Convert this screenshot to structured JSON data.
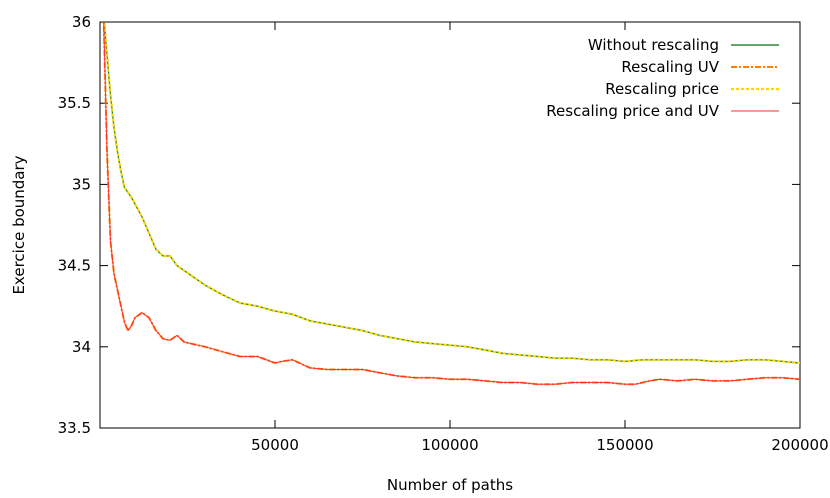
{
  "chart_data": {
    "type": "line",
    "xlabel": "Number of paths",
    "ylabel": "Exercice boundary",
    "xlim": [
      0,
      200000
    ],
    "ylim": [
      33.5,
      36
    ],
    "x_ticks": [
      50000,
      100000,
      150000,
      200000
    ],
    "y_ticks": [
      33.5,
      34,
      34.5,
      35,
      35.5,
      36
    ],
    "legend_position": "top-right",
    "grid": false,
    "series": [
      {
        "name": "Without rescaling",
        "color": "#2e8b3a",
        "style": "solid",
        "x": [
          1000,
          2000,
          3000,
          4000,
          5000,
          6000,
          7000,
          8000,
          9000,
          10000,
          12000,
          14000,
          16000,
          18000,
          20000,
          22000,
          24000,
          26000,
          28000,
          30000,
          35000,
          40000,
          45000,
          50000,
          55000,
          60000,
          65000,
          70000,
          75000,
          80000,
          85000,
          90000,
          95000,
          100000,
          105000,
          110000,
          115000,
          120000,
          125000,
          130000,
          135000,
          140000,
          145000,
          150000,
          155000,
          160000,
          165000,
          170000,
          175000,
          180000,
          185000,
          190000,
          195000,
          200000
        ],
        "y": [
          36.05,
          35.8,
          35.55,
          35.35,
          35.2,
          35.08,
          34.98,
          34.95,
          34.92,
          34.88,
          34.8,
          34.7,
          34.6,
          34.56,
          34.56,
          34.5,
          34.47,
          34.44,
          34.41,
          34.38,
          34.32,
          34.27,
          34.25,
          34.22,
          34.2,
          34.16,
          34.14,
          34.12,
          34.1,
          34.07,
          34.05,
          34.03,
          34.02,
          34.01,
          34.0,
          33.98,
          33.96,
          33.95,
          33.94,
          33.93,
          33.93,
          33.92,
          33.92,
          33.91,
          33.92,
          33.92,
          33.92,
          33.92,
          33.91,
          33.91,
          33.92,
          33.92,
          33.91,
          33.9
        ]
      },
      {
        "name": "Rescaling UV",
        "color": "#ff7f00",
        "style": "dash-dot",
        "x": [
          1000,
          2000,
          3000,
          4000,
          5000,
          6000,
          7000,
          8000,
          9000,
          10000,
          12000,
          14000,
          16000,
          18000,
          20000,
          22000,
          24000,
          26000,
          28000,
          30000,
          35000,
          40000,
          45000,
          50000,
          52000,
          55000,
          60000,
          65000,
          70000,
          75000,
          80000,
          85000,
          90000,
          95000,
          100000,
          105000,
          110000,
          115000,
          120000,
          125000,
          130000,
          135000,
          140000,
          145000,
          150000,
          153000,
          157000,
          160000,
          165000,
          170000,
          175000,
          180000,
          185000,
          190000,
          195000,
          200000
        ],
        "y": [
          36.05,
          35.2,
          34.65,
          34.45,
          34.35,
          34.25,
          34.15,
          34.1,
          34.13,
          34.18,
          34.21,
          34.18,
          34.1,
          34.05,
          34.04,
          34.07,
          34.03,
          34.02,
          34.01,
          34.0,
          33.97,
          33.94,
          33.94,
          33.9,
          33.91,
          33.92,
          33.87,
          33.86,
          33.86,
          33.86,
          33.84,
          33.82,
          33.81,
          33.81,
          33.8,
          33.8,
          33.79,
          33.78,
          33.78,
          33.77,
          33.77,
          33.78,
          33.78,
          33.78,
          33.77,
          33.77,
          33.79,
          33.8,
          33.79,
          33.8,
          33.79,
          33.79,
          33.8,
          33.81,
          33.81,
          33.8
        ]
      },
      {
        "name": "Rescaling price",
        "color": "#ffd700",
        "style": "dotted",
        "x": [
          1000,
          2000,
          3000,
          4000,
          5000,
          6000,
          7000,
          8000,
          9000,
          10000,
          12000,
          14000,
          16000,
          18000,
          20000,
          22000,
          24000,
          26000,
          28000,
          30000,
          35000,
          40000,
          45000,
          50000,
          55000,
          60000,
          65000,
          70000,
          75000,
          80000,
          85000,
          90000,
          95000,
          100000,
          105000,
          110000,
          115000,
          120000,
          125000,
          130000,
          135000,
          140000,
          145000,
          150000,
          155000,
          160000,
          165000,
          170000,
          175000,
          180000,
          185000,
          190000,
          195000,
          200000
        ],
        "y": [
          36.05,
          35.8,
          35.55,
          35.35,
          35.2,
          35.08,
          34.98,
          34.95,
          34.92,
          34.88,
          34.8,
          34.7,
          34.6,
          34.56,
          34.56,
          34.5,
          34.47,
          34.44,
          34.41,
          34.38,
          34.32,
          34.27,
          34.25,
          34.22,
          34.2,
          34.16,
          34.14,
          34.12,
          34.1,
          34.07,
          34.05,
          34.03,
          34.02,
          34.01,
          34.0,
          33.98,
          33.96,
          33.95,
          33.94,
          33.93,
          33.93,
          33.92,
          33.92,
          33.91,
          33.92,
          33.92,
          33.92,
          33.92,
          33.91,
          33.91,
          33.92,
          33.92,
          33.91,
          33.9
        ]
      },
      {
        "name": "Rescaling price and UV",
        "color": "#ff3030",
        "style": "solid-thin",
        "x": [
          1000,
          2000,
          3000,
          4000,
          5000,
          6000,
          7000,
          8000,
          9000,
          10000,
          12000,
          14000,
          16000,
          18000,
          20000,
          22000,
          24000,
          26000,
          28000,
          30000,
          35000,
          40000,
          45000,
          50000,
          52000,
          55000,
          60000,
          65000,
          70000,
          75000,
          80000,
          85000,
          90000,
          95000,
          100000,
          105000,
          110000,
          115000,
          120000,
          125000,
          130000,
          135000,
          140000,
          145000,
          150000,
          153000,
          157000,
          160000,
          165000,
          170000,
          175000,
          180000,
          185000,
          190000,
          195000,
          200000
        ],
        "y": [
          36.05,
          35.2,
          34.65,
          34.45,
          34.35,
          34.25,
          34.15,
          34.1,
          34.13,
          34.18,
          34.21,
          34.18,
          34.1,
          34.05,
          34.04,
          34.07,
          34.03,
          34.02,
          34.01,
          34.0,
          33.97,
          33.94,
          33.94,
          33.9,
          33.91,
          33.92,
          33.87,
          33.86,
          33.86,
          33.86,
          33.84,
          33.82,
          33.81,
          33.81,
          33.8,
          33.8,
          33.79,
          33.78,
          33.78,
          33.77,
          33.77,
          33.78,
          33.78,
          33.78,
          33.77,
          33.77,
          33.79,
          33.8,
          33.79,
          33.8,
          33.79,
          33.79,
          33.8,
          33.81,
          33.81,
          33.8
        ]
      }
    ]
  }
}
